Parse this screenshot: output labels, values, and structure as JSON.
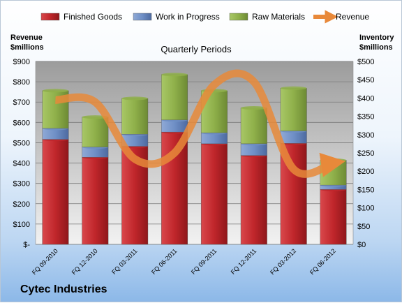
{
  "chart_data": {
    "type": "bar",
    "stacked": true,
    "subtitle": "Quarterly Periods",
    "footer": "Cytec Industries",
    "y_left": {
      "label_line1": "Revenue",
      "label_line2": "$millions",
      "range": [
        0,
        900
      ],
      "step": 100,
      "tick_labels": [
        "$-",
        "$100",
        "$200",
        "$300",
        "$400",
        "$500",
        "$600",
        "$700",
        "$800",
        "$900"
      ]
    },
    "y_right": {
      "label_line1": "Inventory",
      "label_line2": "$millions",
      "range": [
        0,
        500
      ],
      "step": 50,
      "tick_labels": [
        "$0",
        "$50",
        "$100",
        "$150",
        "$200",
        "$250",
        "$300",
        "$350",
        "$400",
        "$450",
        "$500"
      ]
    },
    "categories": [
      "FQ 09-2010",
      "FQ 12-2010",
      "FQ 03-2011",
      "FQ 06-2011",
      "FQ 09-2011",
      "FQ 12-2011",
      "FQ 03-2012",
      "FQ 06-2012"
    ],
    "series": [
      {
        "name": "Finished Goods",
        "axis": "right",
        "color": "#c0262b",
        "values": [
          287,
          238,
          268,
          307,
          275,
          243,
          276,
          150
        ]
      },
      {
        "name": "Work in Progress",
        "axis": "right",
        "color": "#6f8fc6",
        "values": [
          30,
          28,
          33,
          33,
          30,
          32,
          34,
          12
        ]
      },
      {
        "name": "Raw Materials",
        "axis": "right",
        "color": "#8fb04a",
        "values": [
          103,
          82,
          98,
          124,
          115,
          98,
          117,
          68
        ]
      },
      {
        "name": "Revenue",
        "axis": "left",
        "type": "line",
        "color": "#e8893a",
        "values": [
          710,
          700,
          420,
          450,
          785,
          800,
          370,
          400
        ]
      }
    ],
    "grid": true,
    "legend_position": "top"
  }
}
